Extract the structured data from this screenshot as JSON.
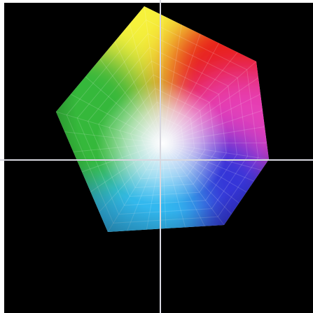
{
  "viewport": {
    "background": "#000000",
    "axis_color": "#d8d8e0",
    "frame_color": "#ffffff"
  },
  "gamut": {
    "vertex_colors": [
      "#f6f23a",
      "#e8231e",
      "#e640b8",
      "#3434d8",
      "#30b8f0",
      "#36b83a"
    ],
    "center_color": "#ffffff"
  }
}
